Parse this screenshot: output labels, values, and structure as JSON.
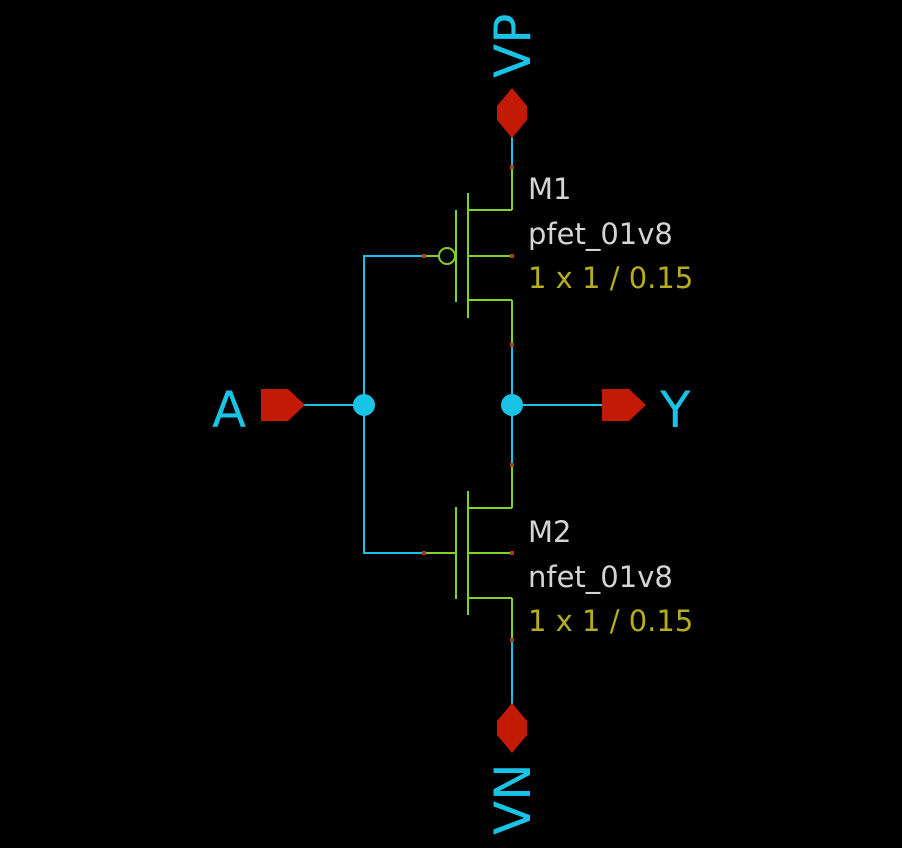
{
  "pins": {
    "vp": "VP",
    "vn": "VN",
    "a": "A",
    "y": "Y"
  },
  "devices": {
    "m1": {
      "name": "M1",
      "model": "pfet_01v8",
      "size": "1 x 1 / 0.15"
    },
    "m2": {
      "name": "M2",
      "model": "nfet_01v8",
      "size": "1 x 1 / 0.15"
    }
  },
  "colors": {
    "background": "#000000",
    "wire": "#19c3e6",
    "transistor": "#7fd321",
    "pin": "#c21a05",
    "device_name": "#d4d4d4",
    "device_size": "#b5ad1f"
  }
}
